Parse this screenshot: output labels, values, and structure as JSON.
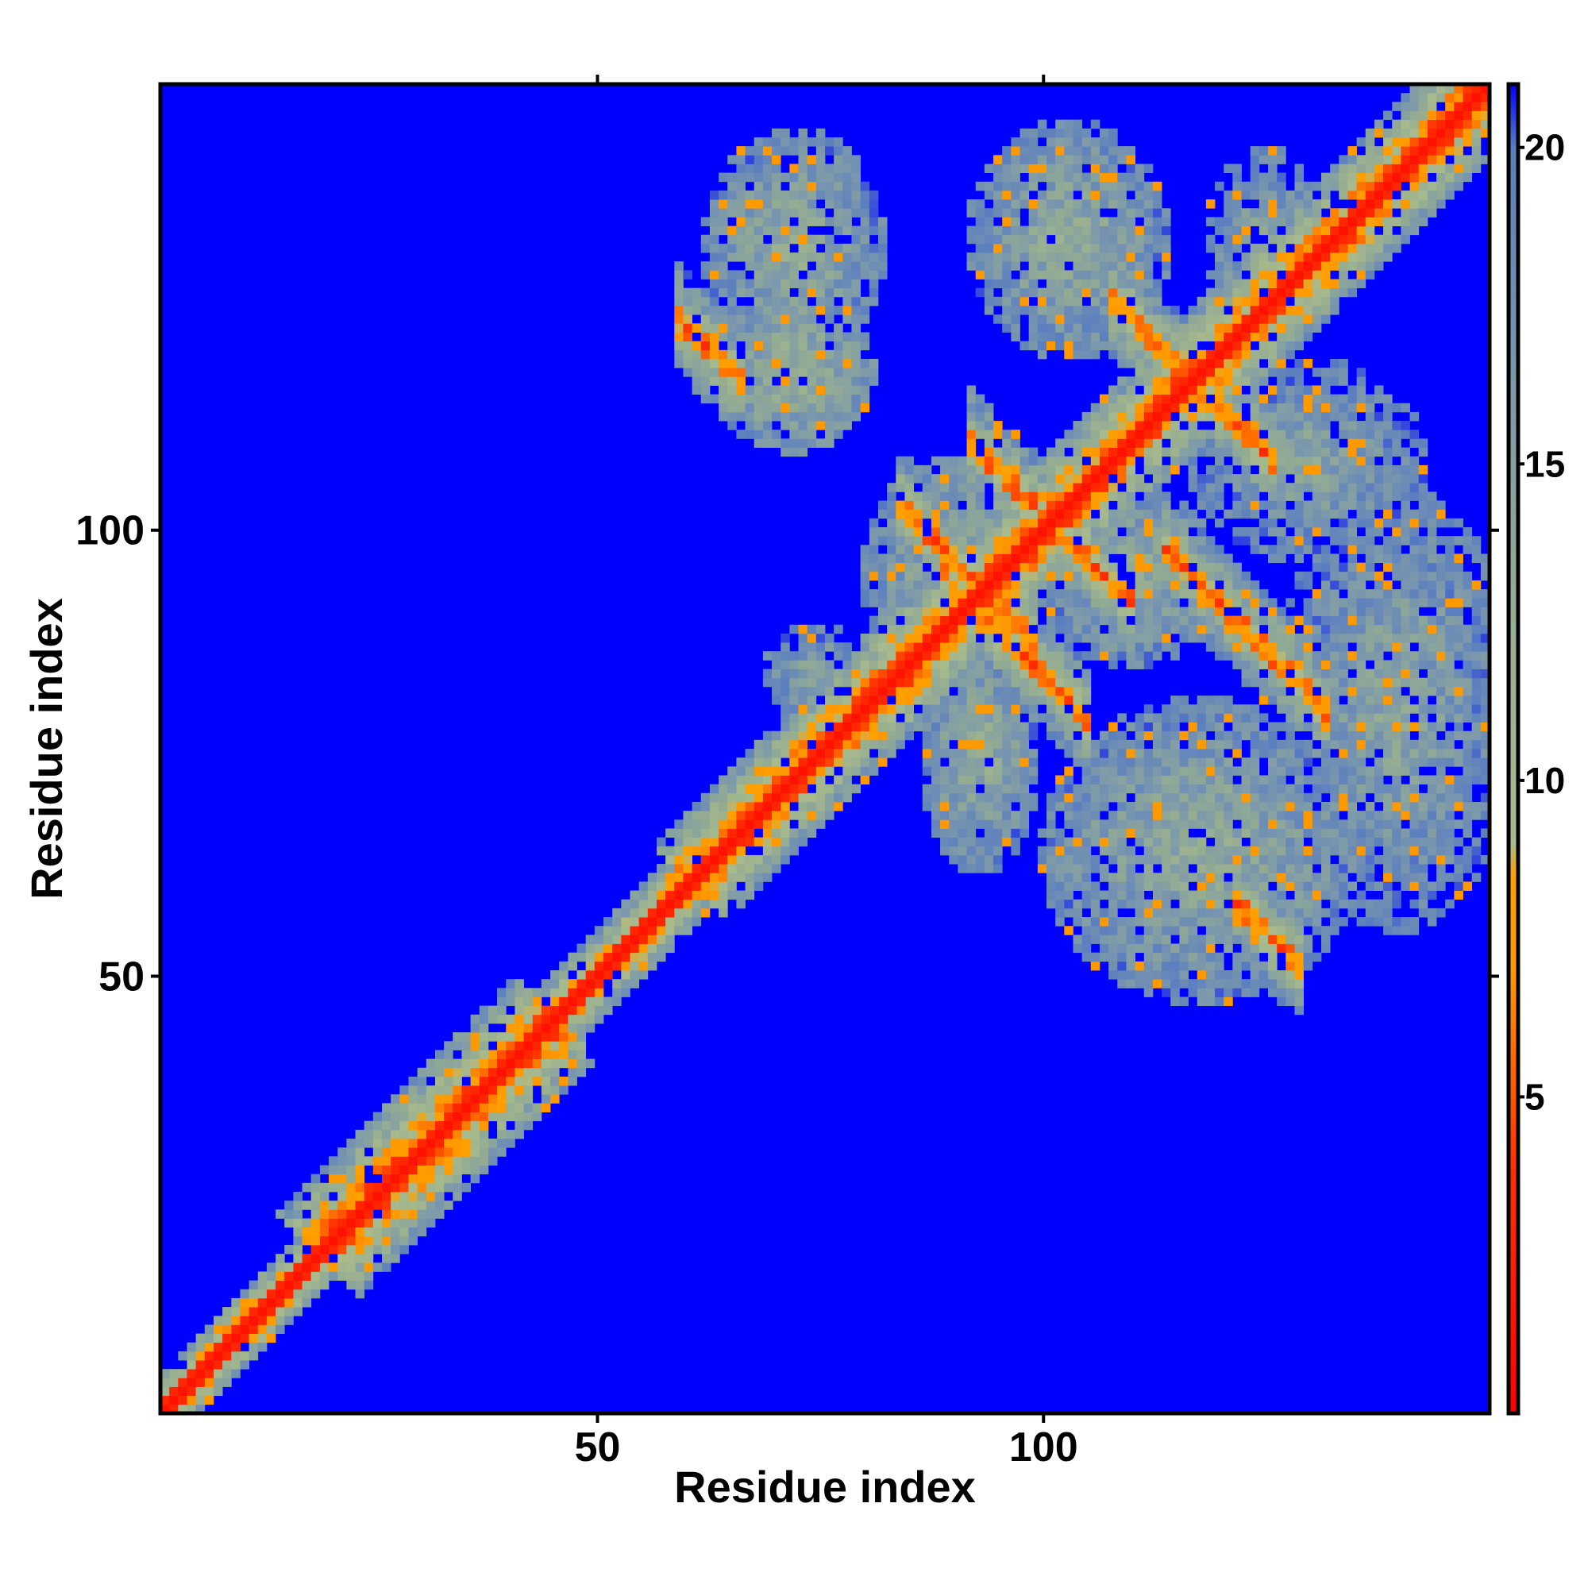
{
  "chart_data": {
    "type": "heatmap",
    "title": "",
    "xlabel": "Residue index",
    "ylabel": "Residue index",
    "n_residues": 150,
    "xlim": [
      1,
      150
    ],
    "ylim": [
      1,
      150
    ],
    "x_ticks": [
      50,
      100
    ],
    "y_ticks": [
      50,
      100
    ],
    "colorbar": {
      "range": [
        0,
        21
      ],
      "ticks": [
        5,
        10,
        15,
        20
      ],
      "stops": [
        {
          "value": 0,
          "color": "#ff0000"
        },
        {
          "value": 4,
          "color": "#ff3300"
        },
        {
          "value": 7,
          "color": "#ff9900"
        },
        {
          "value": 8.5,
          "color": "#ffa000"
        },
        {
          "value": 9,
          "color": "#a9bb8c"
        },
        {
          "value": 13,
          "color": "#93ab93"
        },
        {
          "value": 16,
          "color": "#7e9aaa"
        },
        {
          "value": 20,
          "color": "#5a7ec0"
        },
        {
          "value": 21,
          "color": "#0000ff"
        }
      ]
    },
    "background_color": "#0000ff",
    "diagonal_band": [
      {
        "start": 1,
        "end": 18,
        "width": 4.5
      },
      {
        "start": 18,
        "end": 45,
        "width": 9
      },
      {
        "start": 45,
        "end": 60,
        "width": 5
      },
      {
        "start": 60,
        "end": 150,
        "width": 8
      }
    ],
    "contact_lines": [
      {
        "center": 184,
        "from": 91,
        "to": 103,
        "max_dist": 7
      },
      {
        "center": 202,
        "from": 94,
        "to": 108,
        "max_dist": 7
      },
      {
        "center": 234,
        "from": 110,
        "to": 124,
        "max_dist": 7
      },
      {
        "center": 212,
        "from": 116,
        "to": 130,
        "max_dist": 7
      },
      {
        "center": 187,
        "from": 86,
        "to": 97,
        "max_dist": 8
      },
      {
        "center": 183,
        "from": 61,
        "to": 64,
        "max_dist": 8
      },
      {
        "center": 180,
        "from": 124,
        "to": 127,
        "max_dist": 8
      }
    ],
    "contact_patches": [
      {
        "x": 72,
        "y": 132,
        "rx": 9,
        "ry": 12,
        "dist": 13
      },
      {
        "x": 103,
        "y": 133,
        "rx": 10,
        "ry": 12,
        "dist": 13
      },
      {
        "x": 72,
        "y": 118,
        "rx": 8,
        "ry": 8,
        "dist": 12
      },
      {
        "x": 125,
        "y": 132,
        "rx": 6,
        "ry": 10,
        "dist": 14
      },
      {
        "x": 90,
        "y": 95,
        "rx": 9,
        "ry": 12,
        "dist": 13
      },
      {
        "x": 110,
        "y": 95,
        "rx": 9,
        "ry": 9,
        "dist": 13
      },
      {
        "x": 140,
        "y": 80,
        "rx": 12,
        "ry": 22,
        "dist": 14
      },
      {
        "x": 118,
        "y": 64,
        "rx": 16,
        "ry": 15,
        "dist": 13
      },
      {
        "x": 93,
        "y": 75,
        "rx": 6,
        "ry": 12,
        "dist": 13
      },
      {
        "x": 130,
        "y": 108,
        "rx": 12,
        "ry": 10,
        "dist": 14
      },
      {
        "x": 75,
        "y": 84,
        "rx": 6,
        "ry": 5,
        "dist": 14
      }
    ]
  }
}
